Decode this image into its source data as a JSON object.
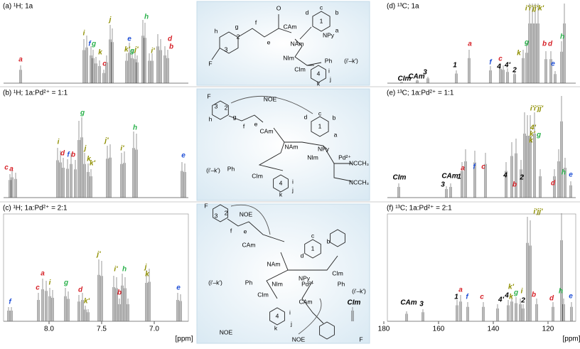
{
  "panels": [
    {
      "title": "(a) ¹H; 1a",
      "labels": [
        {
          "text": "a",
          "color": "#d62027"
        },
        {
          "text": "i",
          "color": "#8f8f00"
        },
        {
          "text": "f",
          "color": "#1f4fd6"
        },
        {
          "text": "g",
          "color": "#2bb24c"
        },
        {
          "text": "k",
          "color": "#8f8f00"
        },
        {
          "text": "c",
          "color": "#d62027"
        },
        {
          "text": "j",
          "color": "#8f8f00"
        },
        {
          "text": "k'",
          "color": "#8f8f00"
        },
        {
          "text": "e",
          "color": "#1f4fd6"
        },
        {
          "text": "g",
          "color": "#2bb24c"
        },
        {
          "text": "j'",
          "color": "#8f8f00"
        },
        {
          "text": "h",
          "color": "#2bb24c"
        },
        {
          "text": "i'",
          "color": "#8f8f00"
        },
        {
          "text": "d",
          "color": "#d62027"
        },
        {
          "text": "b",
          "color": "#d62027"
        }
      ]
    },
    {
      "title": "(b) ¹H; 1a:Pd²⁺ = 1:1",
      "labels": [
        {
          "text": "c",
          "color": "#d62027"
        },
        {
          "text": "a",
          "color": "#d62027"
        },
        {
          "text": "i",
          "color": "#8f8f00"
        },
        {
          "text": "d",
          "color": "#d62027"
        },
        {
          "text": "f",
          "color": "#1f4fd6"
        },
        {
          "text": "b",
          "color": "#d62027"
        },
        {
          "text": "g",
          "color": "#2bb24c"
        },
        {
          "text": "j",
          "color": "#8f8f00"
        },
        {
          "text": "k",
          "color": "#8f8f00"
        },
        {
          "text": "k'",
          "color": "#8f8f00"
        },
        {
          "text": "j'",
          "color": "#8f8f00"
        },
        {
          "text": "i'",
          "color": "#8f8f00"
        },
        {
          "text": "h",
          "color": "#2bb24c"
        },
        {
          "text": "e",
          "color": "#1f4fd6"
        }
      ]
    },
    {
      "title": "(c) ¹H; 1a:Pd²⁺ = 2:1",
      "labels": [
        {
          "text": "f",
          "color": "#1f4fd6"
        },
        {
          "text": "c",
          "color": "#d62027"
        },
        {
          "text": "a",
          "color": "#d62027"
        },
        {
          "text": "i",
          "color": "#8f8f00"
        },
        {
          "text": "g",
          "color": "#2bb24c"
        },
        {
          "text": "d",
          "color": "#d62027"
        },
        {
          "text": "k'",
          "color": "#8f8f00"
        },
        {
          "text": "j'",
          "color": "#8f8f00"
        },
        {
          "text": "i'",
          "color": "#8f8f00"
        },
        {
          "text": "h",
          "color": "#2bb24c"
        },
        {
          "text": "b",
          "color": "#d62027"
        },
        {
          "text": "j",
          "color": "#8f8f00"
        },
        {
          "text": "k",
          "color": "#8f8f00"
        },
        {
          "text": "e",
          "color": "#1f4fd6"
        }
      ],
      "ticks": [
        {
          "value": 8,
          "label": "8.0"
        },
        7.5,
        {
          "value": 7,
          "label": "7.0"
        }
      ],
      "unit": "[ppm]"
    },
    {
      "title": "(d) ¹³C; 1a",
      "labels": [
        {
          "text": "i'i'jj'k'",
          "color": "#8f8f00"
        },
        {
          "text": "a",
          "color": "#d62027"
        },
        {
          "text": "h",
          "color": "#2bb24c"
        },
        {
          "text": "g",
          "color": "#2bb24c"
        },
        {
          "text": "b",
          "color": "#d62027"
        },
        {
          "text": "d",
          "color": "#d62027"
        },
        {
          "text": "k",
          "color": "#8f8f00"
        },
        {
          "text": "f",
          "color": "#1f4fd6"
        },
        {
          "text": "c",
          "color": "#d62027"
        },
        {
          "text": "4",
          "color": "#000"
        },
        {
          "text": "4'",
          "color": "#000"
        },
        {
          "text": "e",
          "color": "#1f4fd6"
        },
        {
          "text": "2",
          "color": "#000"
        },
        {
          "text": "1",
          "color": "#000"
        },
        {
          "text": "3",
          "color": "#000"
        },
        {
          "text": "CIm",
          "color": "#000"
        },
        {
          "text": "CAm",
          "color": "#000"
        }
      ]
    },
    {
      "title": "(e) ¹³C; 1a:Pd²⁺ = 1:1",
      "labels": [
        {
          "text": "i'i'jj'",
          "color": "#8f8f00"
        },
        {
          "text": "4'",
          "color": "#8f8f00"
        },
        {
          "text": "k'",
          "color": "#8f8f00"
        },
        {
          "text": "g",
          "color": "#2bb24c"
        },
        {
          "text": "k",
          "color": "#8f8f00"
        },
        {
          "text": "a",
          "color": "#d62027"
        },
        {
          "text": "f",
          "color": "#1f4fd6"
        },
        {
          "text": "c",
          "color": "#d62027"
        },
        {
          "text": "1",
          "color": "#000"
        },
        {
          "text": "4",
          "color": "#000"
        },
        {
          "text": "2",
          "color": "#000"
        },
        {
          "text": "b",
          "color": "#d62027"
        },
        {
          "text": "d",
          "color": "#d62027"
        },
        {
          "text": "h",
          "color": "#2bb24c"
        },
        {
          "text": "e",
          "color": "#1f4fd6"
        },
        {
          "text": "CIm",
          "color": "#000"
        },
        {
          "text": "CAm",
          "color": "#000"
        },
        {
          "text": "3",
          "color": "#000"
        }
      ]
    },
    {
      "title": "(f) ¹³C; 1a:Pd²⁺ = 2:1",
      "labels": [
        {
          "text": "i'jj'",
          "color": "#8f8f00"
        },
        {
          "text": "1",
          "color": "#000"
        },
        {
          "text": "a",
          "color": "#d62027"
        },
        {
          "text": "f",
          "color": "#1f4fd6"
        },
        {
          "text": "c",
          "color": "#d62027"
        },
        {
          "text": "4'",
          "color": "#000"
        },
        {
          "text": "k'",
          "color": "#8f8f00"
        },
        {
          "text": "4",
          "color": "#000"
        },
        {
          "text": "k",
          "color": "#8f8f00"
        },
        {
          "text": "g",
          "color": "#2bb24c"
        },
        {
          "text": "i",
          "color": "#8f8f00"
        },
        {
          "text": "2",
          "color": "#000"
        },
        {
          "text": "b",
          "color": "#d62027"
        },
        {
          "text": "d",
          "color": "#d62027"
        },
        {
          "text": "h",
          "color": "#2bb24c"
        },
        {
          "text": "e",
          "color": "#1f4fd6"
        },
        {
          "text": "CIm",
          "color": "#000"
        },
        {
          "text": "CAm",
          "color": "#000"
        },
        {
          "text": "3",
          "color": "#000"
        }
      ],
      "ticks": [
        180,
        160,
        140,
        120
      ],
      "unit": "[ppm]"
    }
  ],
  "structures": [
    {
      "labels": [
        "F",
        "2",
        "3",
        "g",
        "h",
        "f",
        "e",
        "O",
        "CAm",
        "NAm",
        "1",
        "a",
        "b",
        "c",
        "d",
        "NPy",
        "NIm",
        "CIm",
        "Ph",
        "(i'–k')",
        "4",
        "i",
        "j",
        "k"
      ]
    },
    {
      "labels": [
        "F",
        "3",
        "2",
        "g",
        "h",
        "f",
        "e",
        "NOE",
        "CAm",
        "NAm",
        "1",
        "a",
        "b",
        "c",
        "d",
        "NPy",
        "NIm",
        "Pd²⁺",
        "NCCH₃",
        "NCCH₃",
        "Ph",
        "(i'–k')",
        "CIm",
        "4",
        "i",
        "j",
        "k"
      ]
    },
    {
      "labels": [
        "F",
        "3",
        "2",
        "NOE",
        "f",
        "e",
        "CAm",
        "NAm",
        "1",
        "c",
        "b",
        "d",
        "NPy",
        "NIm",
        "Pd²⁺",
        "Ph",
        "(i'–k')",
        "CIm",
        "4",
        "i",
        "j",
        "k",
        "Ph",
        "(i'–k')",
        "CIm",
        "NOE",
        "NOE",
        "CAm",
        "F"
      ]
    }
  ]
}
